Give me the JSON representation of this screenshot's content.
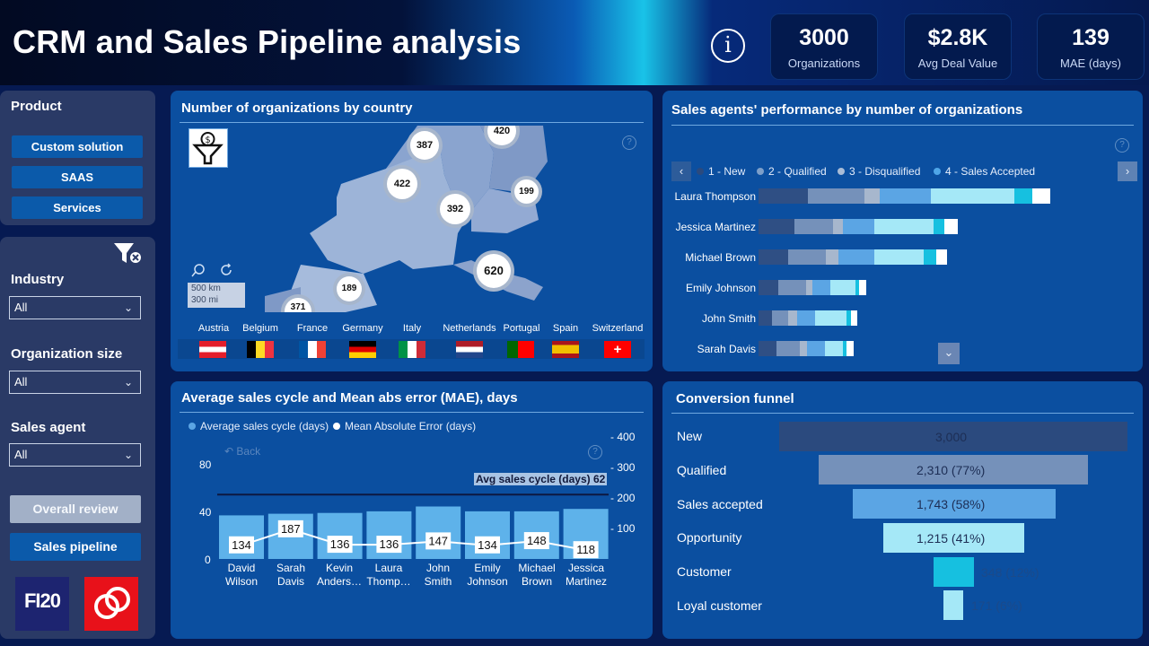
{
  "header": {
    "title": "CRM and Sales Pipeline analysis",
    "kpis": [
      {
        "value": "3000",
        "label": "Organizations"
      },
      {
        "value": "$2.8K",
        "label": "Avg Deal Value"
      },
      {
        "value": "139",
        "label": "MAE (days)"
      }
    ]
  },
  "sidebar": {
    "product_label": "Product",
    "products": [
      "Custom solution",
      "SAAS",
      "Services"
    ],
    "industry_label": "Industry",
    "industry_value": "All",
    "org_size_label": "Organization size",
    "org_size_value": "All",
    "agent_label": "Sales agent",
    "agent_value": "All",
    "overall_review": "Overall review",
    "sales_pipeline": "Sales pipeline",
    "logo_text": "FI20"
  },
  "map_panel": {
    "title": "Number of organizations by country",
    "scale_km": "500 km",
    "scale_mi": "300 mi",
    "bubbles": [
      "387",
      "420",
      "422",
      "392",
      "199",
      "620",
      "189",
      "371"
    ],
    "countries": [
      "Austria",
      "Belgium",
      "France",
      "Germany",
      "Italy",
      "Netherlands",
      "Portugal",
      "Spain",
      "Switzerland"
    ]
  },
  "agents_panel": {
    "title": "Sales agents' performance by number of organizations",
    "legend": [
      "1 - New",
      "2 - Qualified",
      "3 - Disqualified",
      "4 - Sales Accepted"
    ],
    "agents": [
      "Laura Thompson",
      "Jessica Martinez",
      "Michael Brown",
      "Emily Johnson",
      "John Smith",
      "Sarah Davis"
    ]
  },
  "cycle_panel": {
    "title": "Average sales cycle and Mean abs error (MAE), days",
    "legend": [
      "Average sales cycle (days)",
      "Mean Absolute Error (days)"
    ],
    "back": "Back",
    "avg_label": "Avg sales cycle (days) 62"
  },
  "funnel_panel": {
    "title": "Conversion funnel",
    "stages": [
      "New",
      "Qualified",
      "Sales accepted",
      "Opportunity",
      "Customer",
      "Loyal customer"
    ],
    "values": [
      "3,000",
      "2,310 (77%)",
      "1,743 (58%)",
      "1,215 (41%)",
      "348 (12%)",
      "171 (6%)"
    ]
  },
  "chart_data": {
    "type": "bar",
    "categories": [
      "David Wilson",
      "Sarah Davis",
      "Kevin Anders…",
      "Laura Thomp…",
      "John Smith",
      "Emily Johnson",
      "Michael Brown",
      "Jessica Martinez"
    ],
    "series": [
      {
        "name": "Average sales cycle (days)",
        "values": [
          54,
          56,
          57,
          59,
          65,
          59,
          59,
          62
        ]
      },
      {
        "name": "Mean Absolute Error (days)",
        "values": [
          134,
          187,
          136,
          136,
          147,
          134,
          148,
          118
        ]
      }
    ],
    "y_left_ticks": [
      "0",
      "40",
      "80"
    ],
    "y_right_ticks": [
      "100",
      "200",
      "300",
      "400"
    ],
    "ylim_left": [
      0,
      120
    ],
    "ylim_right": [
      0,
      400
    ],
    "ref_line": 62
  }
}
